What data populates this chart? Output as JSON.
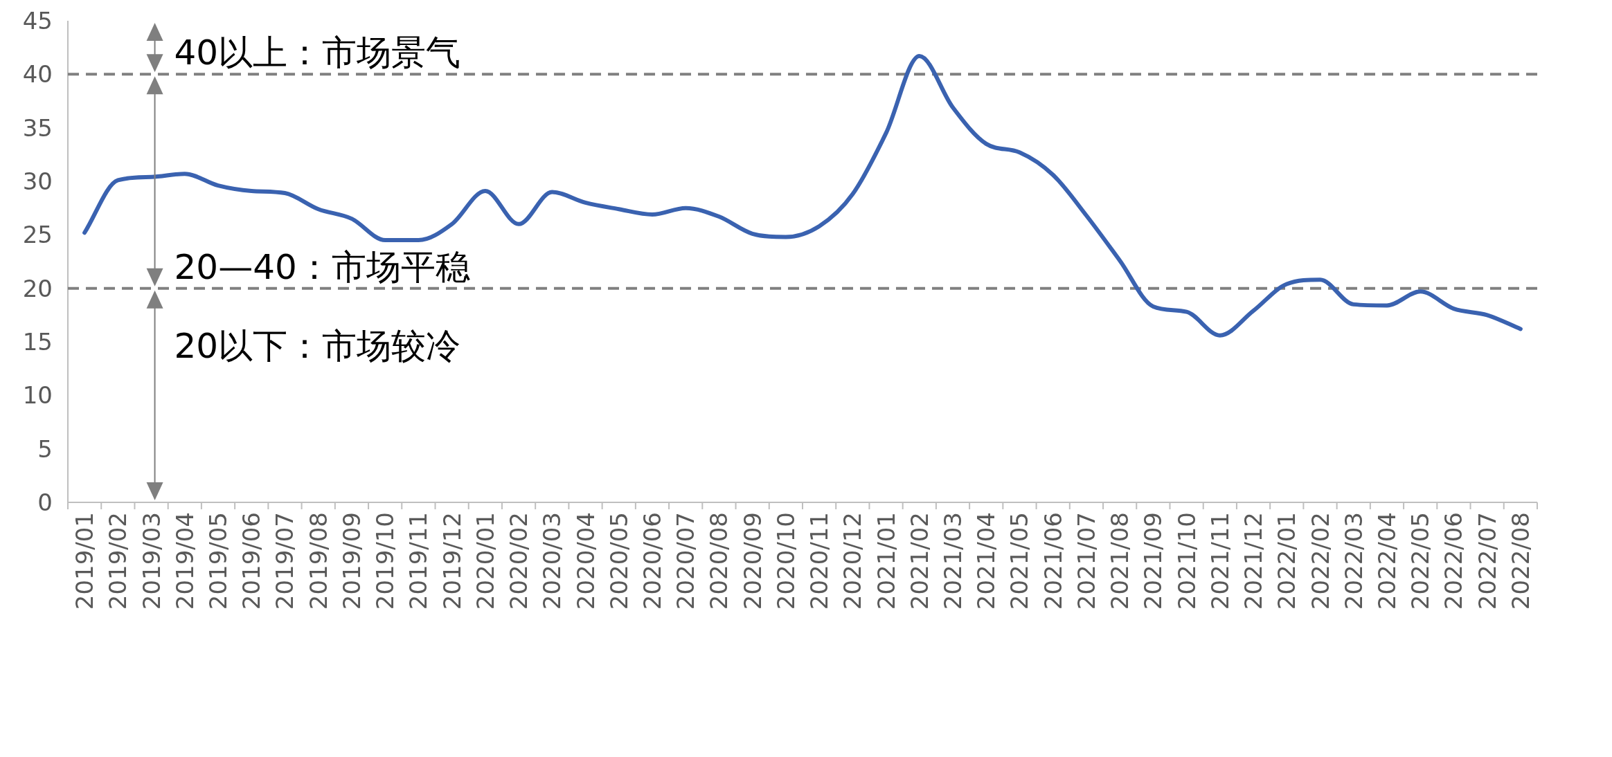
{
  "chart_data": {
    "type": "line",
    "categories": [
      "2019/01",
      "2019/02",
      "2019/03",
      "2019/04",
      "2019/05",
      "2019/06",
      "2019/07",
      "2019/08",
      "2019/09",
      "2019/10",
      "2019/11",
      "2019/12",
      "2020/01",
      "2020/02",
      "2020/03",
      "2020/04",
      "2020/05",
      "2020/06",
      "2020/07",
      "2020/08",
      "2020/09",
      "2020/10",
      "2020/11",
      "2020/12",
      "2021/01",
      "2021/02",
      "2021/03",
      "2021/04",
      "2021/05",
      "2021/06",
      "2021/07",
      "2021/08",
      "2021/09",
      "2021/10",
      "2021/11",
      "2021/12",
      "2022/01",
      "2022/02",
      "2022/03",
      "2022/04",
      "2022/05",
      "2022/06",
      "2022/07",
      "2022/08"
    ],
    "series": [
      {
        "color": "#3a62b0",
        "values": [
          25.2,
          30.1,
          30.4,
          30.7,
          29.6,
          29.1,
          28.9,
          27.4,
          26.5,
          24.5,
          24.5,
          26.0,
          29.1,
          26.0,
          29.0,
          28.0,
          27.4,
          26.9,
          27.5,
          26.7,
          25.1,
          24.8,
          25.8,
          28.8,
          34.5,
          41.7,
          36.9,
          33.5,
          32.7,
          30.6,
          26.8,
          22.6,
          18.3,
          17.8,
          15.6,
          17.9,
          20.4,
          20.8,
          18.5,
          18.4,
          19.7,
          18.1,
          17.5,
          16.2
        ]
      }
    ],
    "ylim": [
      0,
      45
    ],
    "yticks": [
      0,
      5,
      10,
      15,
      20,
      25,
      30,
      35,
      40,
      45
    ],
    "ref_lines": [
      {
        "axis": "y",
        "value": 40,
        "color": "#808080",
        "line_style": "dashed"
      },
      {
        "axis": "y",
        "value": 20,
        "color": "#808080",
        "line_style": "dashed"
      }
    ],
    "annotations": [
      "40以上：市场景气",
      "20—40：市场平稳",
      "20以下：市场较冷"
    ],
    "marker": "none",
    "line_style": "solid"
  }
}
